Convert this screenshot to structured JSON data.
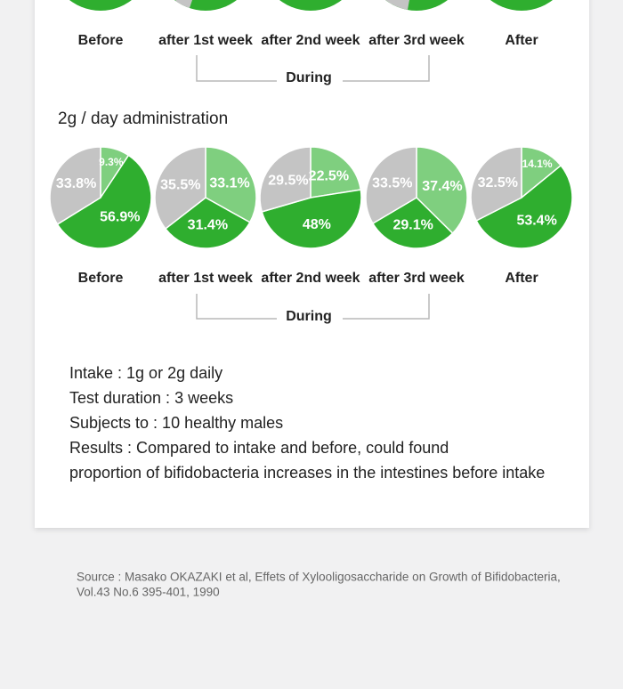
{
  "top_row": {
    "labels": [
      "Before",
      "after 1st week",
      "after 2nd week",
      "after 3rd week",
      "After"
    ],
    "group_label": "During"
  },
  "section": {
    "title": "2g / day administration",
    "group_label": "During"
  },
  "chart_data": [
    {
      "type": "pie",
      "title": "Before",
      "values": [
        9.3,
        56.9,
        33.8
      ],
      "value_labels": [
        "9.3%",
        "56.9%",
        "33.8%"
      ],
      "colors": [
        "#7fcf7f",
        "#2fae2f",
        "#c4c4c4"
      ]
    },
    {
      "type": "pie",
      "title": "after 1st week",
      "values": [
        33.1,
        31.4,
        35.5
      ],
      "value_labels": [
        "33.1%",
        "31.4%",
        "35.5%"
      ],
      "colors": [
        "#7fcf7f",
        "#2fae2f",
        "#c4c4c4"
      ]
    },
    {
      "type": "pie",
      "title": "after 2nd week",
      "values": [
        22.5,
        48,
        29.5
      ],
      "value_labels": [
        "22.5%",
        "48%",
        "29.5%"
      ],
      "colors": [
        "#7fcf7f",
        "#2fae2f",
        "#c4c4c4"
      ]
    },
    {
      "type": "pie",
      "title": "after 3rd week",
      "values": [
        37.4,
        29.1,
        33.5
      ],
      "value_labels": [
        "37.4%",
        "29.1%",
        "33.5%"
      ],
      "colors": [
        "#7fcf7f",
        "#2fae2f",
        "#c4c4c4"
      ]
    },
    {
      "type": "pie",
      "title": "After",
      "values": [
        14.1,
        53.4,
        32.5
      ],
      "value_labels": [
        "14.1%",
        "53.4%",
        "32.5%"
      ],
      "colors": [
        "#7fcf7f",
        "#2fae2f",
        "#c4c4c4"
      ]
    }
  ],
  "notes": [
    "Intake : 1g or 2g daily",
    "Test duration : 3 weeks",
    "Subjects to : 10 healthy males",
    "Results : Compared to intake and before, could found",
    "proportion of bifidobacteria increases in the intestines before intake"
  ],
  "source": [
    "Source : Masako OKAZAKI et al, Effets of Xylooligosaccharide on Growth of Bifidobacteria,",
    "Vol.43 No.6 395-401, 1990"
  ]
}
